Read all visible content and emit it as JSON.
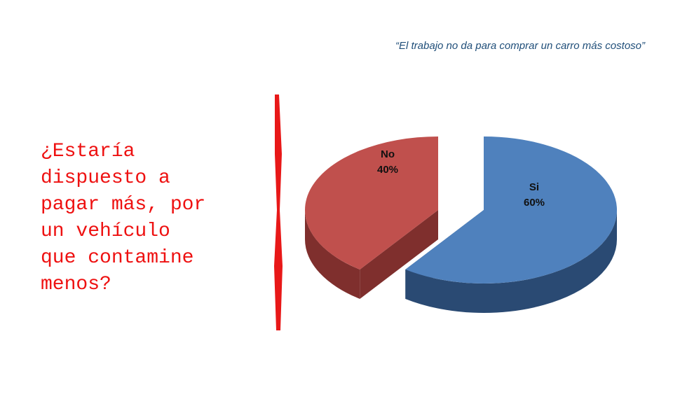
{
  "quote": "“El trabajo no da para comprar un carro más costoso”",
  "question": "¿Estaría\ndispuesto a\npagar más, por\nun vehículo\nque contamine\nmenos?",
  "colors": {
    "question": "#ee1111",
    "divider": "#e81818",
    "no_top": "#c0504d",
    "no_side": "#7f2f2d",
    "si_top": "#4f81bd",
    "si_side": "#2a4a73"
  },
  "chart_data": {
    "type": "pie",
    "title": "",
    "categories": [
      "No",
      "Si"
    ],
    "values": [
      40,
      60
    ],
    "value_labels": [
      "40%",
      "60%"
    ],
    "style": "3d-exploded"
  }
}
